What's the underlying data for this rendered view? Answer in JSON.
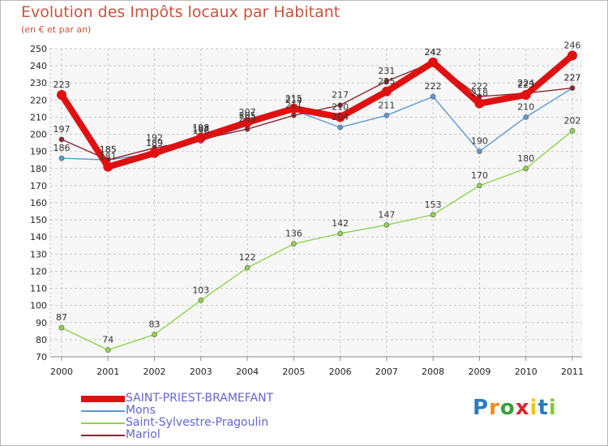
{
  "header": {
    "title": "Evolution des Impôts locaux par Habitant",
    "subtitle": "(en € et par an)"
  },
  "chart_data": {
    "type": "line",
    "title": "Evolution des Impôts locaux par Habitant",
    "subtitle": "(en € et par an)",
    "xlabel": "",
    "ylabel": "",
    "ylim": [
      70,
      250
    ],
    "yticks": [
      70,
      80,
      90,
      100,
      110,
      120,
      130,
      140,
      150,
      160,
      170,
      180,
      190,
      200,
      210,
      220,
      230,
      240,
      250
    ],
    "categories": [
      "2000",
      "2001",
      "2002",
      "2003",
      "2004",
      "2005",
      "2006",
      "2007",
      "2008",
      "2009",
      "2010",
      "2011"
    ],
    "grid": true,
    "legend_position": "bottom-left",
    "series": [
      {
        "name": "SAINT-PRIEST-BRAMEFANT",
        "color": "#e01010",
        "values": [
          223,
          181,
          189,
          198,
          207,
          215,
          210,
          225,
          242,
          218,
          223,
          246
        ]
      },
      {
        "name": "Mons",
        "color": "#5b9bd5",
        "values": [
          186,
          185,
          189,
          196,
          205,
          214,
          204,
          211,
          222,
          190,
          210,
          227
        ]
      },
      {
        "name": "Saint-Sylvestre-Pragoulin",
        "color": "#8ed44e",
        "values": [
          87,
          74,
          83,
          103,
          122,
          136,
          142,
          147,
          153,
          170,
          180,
          202
        ]
      },
      {
        "name": "Mariol",
        "color": "#8b2530",
        "values": [
          197,
          185,
          192,
          197,
          203,
          211,
          217,
          231,
          242,
          222,
          224,
          227
        ]
      }
    ]
  },
  "logo": {
    "text": "Proxiti",
    "letters": [
      "P",
      "r",
      "o",
      "x",
      "i",
      "t",
      "i"
    ],
    "colors": [
      "#2a7bbf",
      "#f08c1e",
      "#3aa03c",
      "#d9282a",
      "#f0c419",
      "#2a7bbf",
      "#8cc63f"
    ]
  }
}
